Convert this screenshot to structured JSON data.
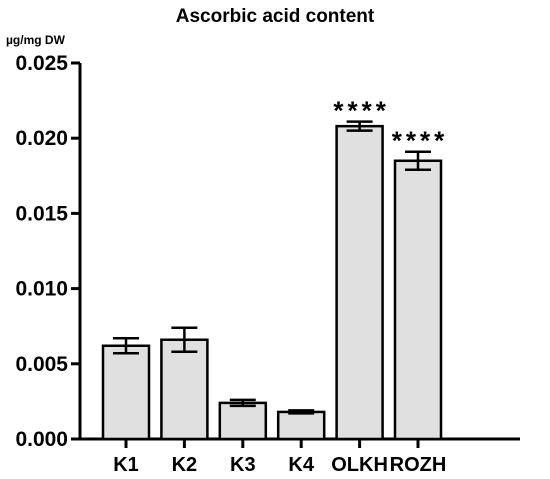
{
  "chart_data": {
    "type": "bar",
    "title": "Ascorbic acid content",
    "ylabel": "µg/mg DW",
    "xlabel": "",
    "categories": [
      "K1",
      "K2",
      "K3",
      "K4",
      "OLKH",
      "ROZH"
    ],
    "values": [
      0.0062,
      0.0066,
      0.0024,
      0.0018,
      0.0208,
      0.0185
    ],
    "errors": [
      0.0005,
      0.0008,
      0.0002,
      0.0001,
      0.0003,
      0.0006
    ],
    "annotations": [
      "",
      "",
      "",
      "",
      "****",
      "****"
    ],
    "ylim": [
      0,
      0.025
    ],
    "yticks": [
      "0.000",
      "0.005",
      "0.010",
      "0.015",
      "0.020",
      "0.025"
    ],
    "ytick_values": [
      0,
      0.005,
      0.01,
      0.015,
      0.02,
      0.025
    ],
    "bar_color": "#e0e0e0",
    "edge_color": "#000000",
    "grid": false,
    "legend": "none"
  }
}
